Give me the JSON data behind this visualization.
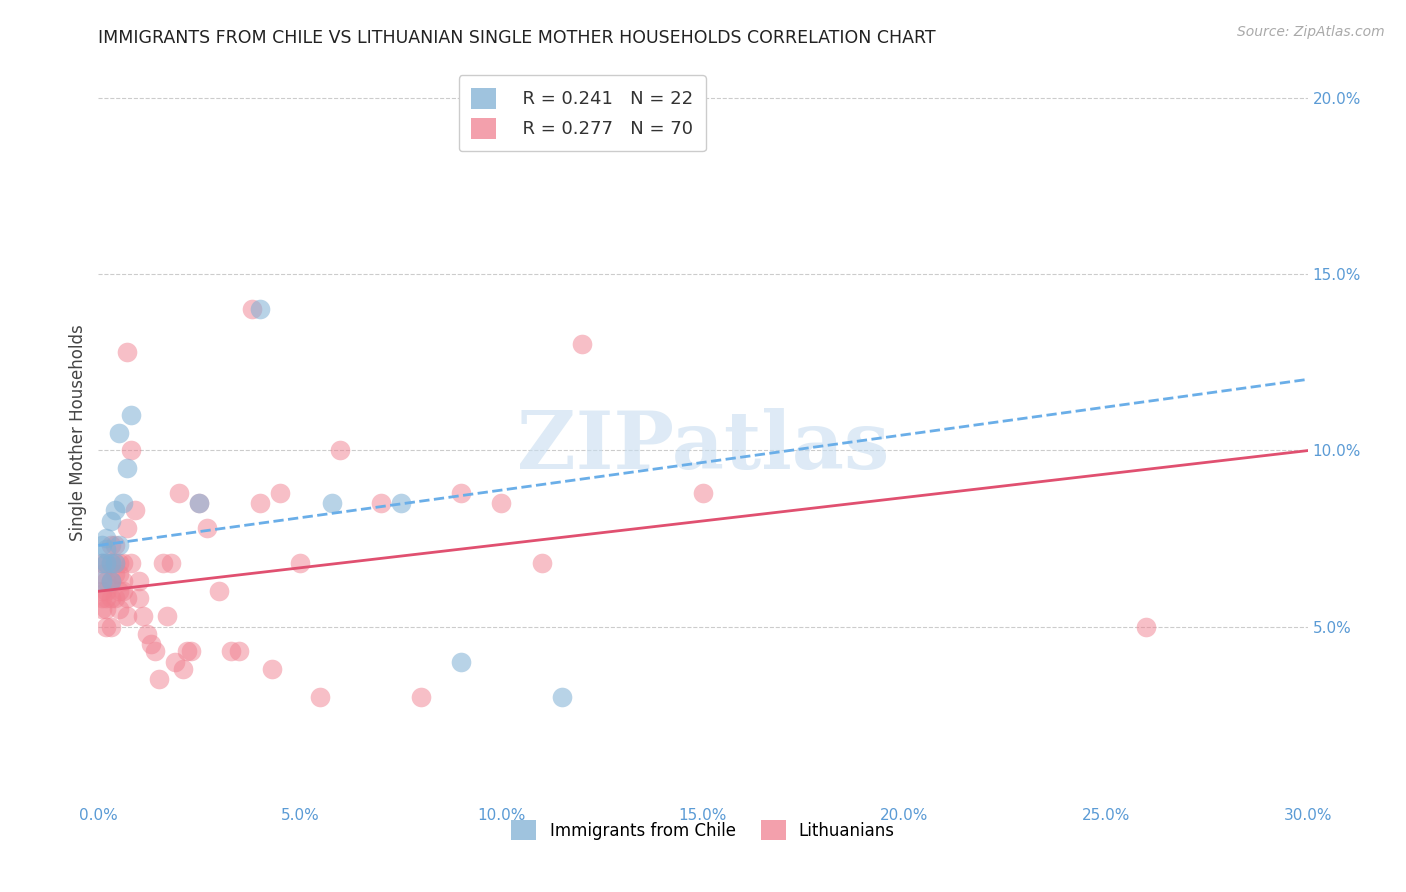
{
  "title": "IMMIGRANTS FROM CHILE VS LITHUANIAN SINGLE MOTHER HOUSEHOLDS CORRELATION CHART",
  "source": "Source: ZipAtlas.com",
  "ylabel": "Single Mother Households",
  "xlim": [
    0.0,
    0.3
  ],
  "ylim": [
    0.0,
    0.21
  ],
  "xticks": [
    0.0,
    0.05,
    0.1,
    0.15,
    0.2,
    0.25,
    0.3
  ],
  "yticks_right": [
    0.05,
    0.1,
    0.15,
    0.2
  ],
  "ytick_labels_right": [
    "5.0%",
    "10.0%",
    "15.0%",
    "20.0%"
  ],
  "xtick_labels": [
    "0.0%",
    "5.0%",
    "10.0%",
    "15.0%",
    "20.0%",
    "25.0%",
    "30.0%"
  ],
  "grid_color": "#cccccc",
  "bg_color": "#ffffff",
  "watermark": "ZIPatlas",
  "legend_r1": "R = 0.241",
  "legend_n1": "N = 22",
  "legend_r2": "R = 0.277",
  "legend_n2": "N = 70",
  "label1": "Immigrants from Chile",
  "label2": "Lithuanians",
  "color1": "#7fafd4",
  "color2": "#f08090",
  "trendline1_color": "#6aaee8",
  "trendline2_color": "#e05070",
  "chile_x": [
    0.001,
    0.001,
    0.001,
    0.002,
    0.002,
    0.002,
    0.003,
    0.003,
    0.003,
    0.004,
    0.004,
    0.005,
    0.005,
    0.006,
    0.007,
    0.008,
    0.025,
    0.04,
    0.058,
    0.075,
    0.09,
    0.115
  ],
  "chile_y": [
    0.073,
    0.068,
    0.063,
    0.072,
    0.068,
    0.075,
    0.08,
    0.068,
    0.063,
    0.083,
    0.068,
    0.073,
    0.105,
    0.085,
    0.095,
    0.11,
    0.085,
    0.14,
    0.085,
    0.085,
    0.04,
    0.03
  ],
  "lith_x": [
    0.001,
    0.001,
    0.001,
    0.001,
    0.001,
    0.002,
    0.002,
    0.002,
    0.002,
    0.002,
    0.002,
    0.003,
    0.003,
    0.003,
    0.003,
    0.003,
    0.003,
    0.004,
    0.004,
    0.004,
    0.004,
    0.005,
    0.005,
    0.005,
    0.005,
    0.006,
    0.006,
    0.006,
    0.007,
    0.007,
    0.007,
    0.007,
    0.008,
    0.008,
    0.009,
    0.01,
    0.01,
    0.011,
    0.012,
    0.013,
    0.014,
    0.015,
    0.016,
    0.017,
    0.018,
    0.019,
    0.02,
    0.021,
    0.022,
    0.023,
    0.025,
    0.027,
    0.03,
    0.033,
    0.035,
    0.038,
    0.04,
    0.043,
    0.045,
    0.05,
    0.055,
    0.06,
    0.07,
    0.08,
    0.09,
    0.1,
    0.11,
    0.12,
    0.15,
    0.26
  ],
  "lith_y": [
    0.06,
    0.065,
    0.058,
    0.068,
    0.055,
    0.06,
    0.058,
    0.063,
    0.068,
    0.055,
    0.05,
    0.063,
    0.068,
    0.073,
    0.058,
    0.05,
    0.063,
    0.065,
    0.058,
    0.073,
    0.068,
    0.065,
    0.06,
    0.055,
    0.068,
    0.06,
    0.063,
    0.068,
    0.128,
    0.078,
    0.058,
    0.053,
    0.068,
    0.1,
    0.083,
    0.063,
    0.058,
    0.053,
    0.048,
    0.045,
    0.043,
    0.035,
    0.068,
    0.053,
    0.068,
    0.04,
    0.088,
    0.038,
    0.043,
    0.043,
    0.085,
    0.078,
    0.06,
    0.043,
    0.043,
    0.14,
    0.085,
    0.038,
    0.088,
    0.068,
    0.03,
    0.1,
    0.085,
    0.03,
    0.088,
    0.085,
    0.068,
    0.13,
    0.088,
    0.05
  ]
}
